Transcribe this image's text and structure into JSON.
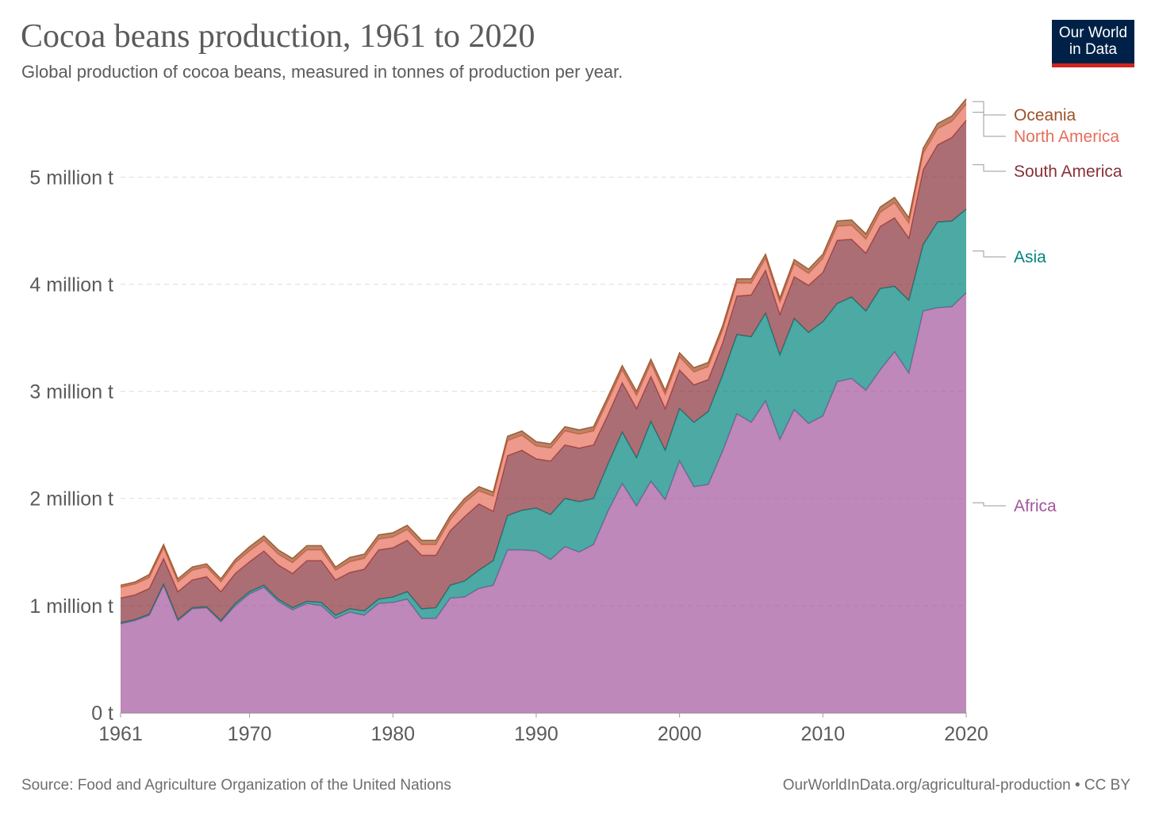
{
  "header": {
    "title": "Cocoa beans production, 1961 to 2020",
    "subtitle": "Global production of cocoa beans, measured in tonnes of production per year."
  },
  "logo": {
    "line1": "Our World",
    "line2": "in Data",
    "bg_color": "#002147",
    "accent_color": "#ce261e"
  },
  "footer": {
    "source": "Source: Food and Agriculture Organization of the United Nations",
    "link": "OurWorldInData.org/agricultural-production • CC BY"
  },
  "chart_data": {
    "type": "area",
    "stacked": true,
    "title": "Cocoa beans production, 1961 to 2020",
    "subtitle": "Global production of cocoa beans, measured in tonnes of production per year.",
    "xlim": [
      1961,
      2020
    ],
    "ylim": [
      0,
      5750000
    ],
    "grid": true,
    "legend": "right, inline labels",
    "x_ticks": [
      {
        "value": 1961,
        "label": "1961"
      },
      {
        "value": 1970,
        "label": "1970"
      },
      {
        "value": 1980,
        "label": "1980"
      },
      {
        "value": 1990,
        "label": "1990"
      },
      {
        "value": 2000,
        "label": "2000"
      },
      {
        "value": 2010,
        "label": "2010"
      },
      {
        "value": 2020,
        "label": "2020"
      }
    ],
    "y_ticks": [
      {
        "value": 0,
        "label": "0 t"
      },
      {
        "value": 1000000,
        "label": "1 million t"
      },
      {
        "value": 2000000,
        "label": "2 million t"
      },
      {
        "value": 3000000,
        "label": "3 million t"
      },
      {
        "value": 4000000,
        "label": "4 million t"
      },
      {
        "value": 5000000,
        "label": "5 million t"
      }
    ],
    "x": [
      1961,
      1962,
      1963,
      1964,
      1965,
      1966,
      1967,
      1968,
      1969,
      1970,
      1971,
      1972,
      1973,
      1974,
      1975,
      1976,
      1977,
      1978,
      1979,
      1980,
      1981,
      1982,
      1983,
      1984,
      1985,
      1986,
      1987,
      1988,
      1989,
      1990,
      1991,
      1992,
      1993,
      1994,
      1995,
      1996,
      1997,
      1998,
      1999,
      2000,
      2001,
      2002,
      2003,
      2004,
      2005,
      2006,
      2007,
      2008,
      2009,
      2010,
      2011,
      2012,
      2013,
      2014,
      2015,
      2016,
      2017,
      2018,
      2019,
      2020
    ],
    "series": [
      {
        "name": "Africa",
        "color": "#a2559c",
        "values": [
          830000,
          860000,
          910000,
          1190000,
          860000,
          970000,
          980000,
          850000,
          1000000,
          1110000,
          1170000,
          1040000,
          960000,
          1020000,
          1000000,
          880000,
          940000,
          910000,
          1020000,
          1030000,
          1060000,
          880000,
          880000,
          1070000,
          1080000,
          1160000,
          1190000,
          1520000,
          1520000,
          1510000,
          1430000,
          1550000,
          1500000,
          1570000,
          1880000,
          2140000,
          1930000,
          2160000,
          1990000,
          2350000,
          2110000,
          2130000,
          2440000,
          2790000,
          2710000,
          2910000,
          2550000,
          2830000,
          2700000,
          2770000,
          3090000,
          3120000,
          3010000,
          3200000,
          3370000,
          3170000,
          3750000,
          3780000,
          3790000,
          3920000
        ]
      },
      {
        "name": "Asia",
        "color": "#00847e",
        "values": [
          10000,
          10000,
          10000,
          10000,
          10000,
          10000,
          10000,
          10000,
          20000,
          20000,
          20000,
          20000,
          20000,
          20000,
          30000,
          30000,
          30000,
          40000,
          40000,
          50000,
          70000,
          90000,
          100000,
          120000,
          150000,
          170000,
          230000,
          320000,
          370000,
          400000,
          420000,
          450000,
          470000,
          430000,
          440000,
          480000,
          450000,
          560000,
          460000,
          490000,
          600000,
          680000,
          710000,
          740000,
          800000,
          820000,
          790000,
          850000,
          850000,
          880000,
          730000,
          760000,
          740000,
          760000,
          610000,
          680000,
          620000,
          800000,
          800000,
          780000
        ]
      },
      {
        "name": "South America",
        "color": "#883039",
        "values": [
          230000,
          230000,
          240000,
          240000,
          260000,
          260000,
          280000,
          270000,
          280000,
          280000,
          320000,
          320000,
          320000,
          380000,
          390000,
          330000,
          340000,
          390000,
          460000,
          460000,
          480000,
          500000,
          490000,
          510000,
          600000,
          620000,
          460000,
          560000,
          560000,
          460000,
          500000,
          500000,
          500000,
          500000,
          460000,
          460000,
          460000,
          420000,
          390000,
          360000,
          350000,
          300000,
          300000,
          360000,
          390000,
          400000,
          380000,
          390000,
          440000,
          460000,
          590000,
          540000,
          540000,
          580000,
          640000,
          580000,
          700000,
          720000,
          780000,
          830000
        ]
      },
      {
        "name": "North America",
        "color": "#e56e5a",
        "values": [
          100000,
          100000,
          100000,
          100000,
          90000,
          90000,
          90000,
          90000,
          100000,
          100000,
          100000,
          100000,
          100000,
          100000,
          100000,
          90000,
          100000,
          100000,
          100000,
          100000,
          100000,
          100000,
          100000,
          100000,
          130000,
          120000,
          140000,
          140000,
          140000,
          120000,
          120000,
          130000,
          130000,
          130000,
          130000,
          120000,
          120000,
          120000,
          130000,
          120000,
          120000,
          120000,
          120000,
          120000,
          110000,
          110000,
          110000,
          120000,
          110000,
          130000,
          130000,
          130000,
          130000,
          130000,
          140000,
          140000,
          150000,
          150000,
          150000,
          150000
        ]
      },
      {
        "name": "Oceania",
        "color": "#9a5129",
        "values": [
          20000,
          20000,
          30000,
          30000,
          30000,
          30000,
          30000,
          30000,
          30000,
          40000,
          40000,
          40000,
          40000,
          40000,
          40000,
          30000,
          40000,
          40000,
          40000,
          40000,
          40000,
          40000,
          40000,
          40000,
          40000,
          40000,
          40000,
          40000,
          40000,
          40000,
          40000,
          40000,
          40000,
          40000,
          40000,
          40000,
          40000,
          40000,
          40000,
          40000,
          40000,
          40000,
          40000,
          40000,
          40000,
          40000,
          40000,
          40000,
          40000,
          40000,
          50000,
          50000,
          50000,
          50000,
          50000,
          50000,
          50000,
          50000,
          50000,
          50000
        ]
      }
    ]
  }
}
